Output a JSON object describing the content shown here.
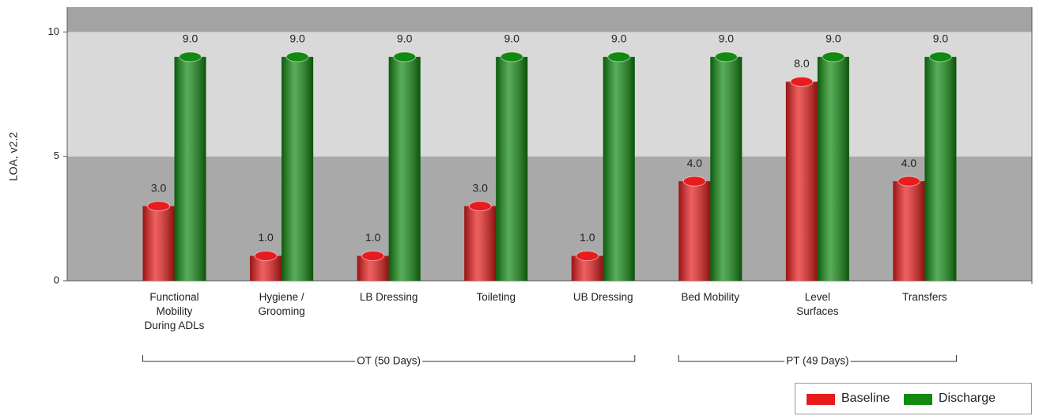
{
  "chart_data": {
    "type": "bar",
    "y_label": "LOA, v2.2",
    "categories": [
      "Functional Mobility During ADLs",
      "Hygiene / Grooming",
      "LB Dressing",
      "Toileting",
      "UB Dressing",
      "Bed Mobility",
      "Level Surfaces",
      "Transfers"
    ],
    "series": [
      {
        "name": "Baseline",
        "color": "#e81c1c",
        "values": [
          3,
          1,
          1,
          3,
          1,
          4,
          8,
          4
        ],
        "value_labels": [
          "3.0",
          "1.0",
          "1.0",
          "3.0",
          "1.0",
          "4.0",
          "8.0",
          "4.0"
        ]
      },
      {
        "name": "Discharge",
        "color": "#128a12",
        "values": [
          9,
          9,
          9,
          9,
          9,
          9,
          9,
          9
        ],
        "value_labels": [
          "9.0",
          "9.0",
          "9.0",
          "9.0",
          "9.0",
          "9.0",
          "9.0",
          "9.0"
        ]
      }
    ],
    "groups": [
      {
        "label": "OT (50 Days)",
        "start": 0,
        "end": 4
      },
      {
        "label": "PT (49 Days)",
        "start": 5,
        "end": 7
      }
    ],
    "ylim": [
      0,
      11
    ],
    "yticks": [
      0,
      5,
      10
    ],
    "bands": [
      {
        "from": 0,
        "to": 5,
        "color": "#a9a9a9"
      },
      {
        "from": 5,
        "to": 10,
        "color": "#d9d9d9"
      },
      {
        "from": 10,
        "to": 11,
        "color": "#a3a3a3"
      }
    ],
    "legend": "bottom-right"
  }
}
